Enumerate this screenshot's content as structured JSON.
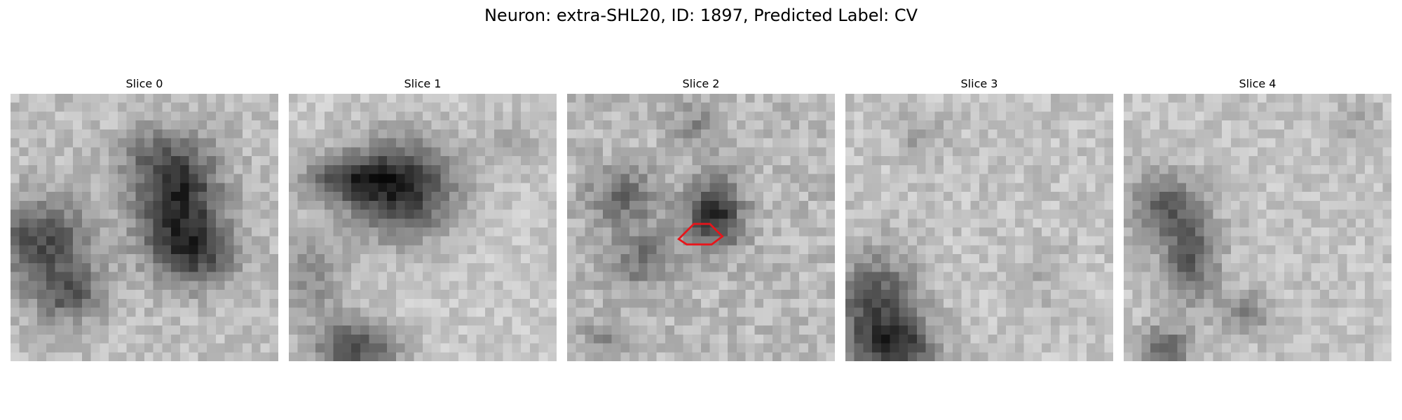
{
  "figure": {
    "title": "Neuron: extra-SHL20, ID: 1897, Predicted Label: CV"
  },
  "slices": [
    {
      "label": "Slice 0"
    },
    {
      "label": "Slice 1"
    },
    {
      "label": "Slice 2"
    },
    {
      "label": "Slice 3"
    },
    {
      "label": "Slice 4"
    }
  ],
  "annotation": {
    "slice_index": 2,
    "color": "#e8141a",
    "shape": "hexagonal outline (predicted CV region)"
  },
  "colors": {
    "background": "#ffffff",
    "colormap": "grayscale"
  }
}
